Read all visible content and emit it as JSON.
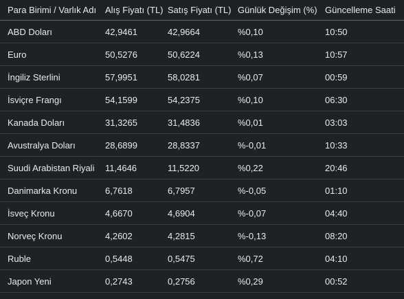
{
  "table": {
    "headers": [
      "Para Birimi / Varlık Adı",
      "Alış Fiyatı (TL)",
      "Satış Fiyatı (TL)",
      "Günlük Değişim (%)",
      "Güncelleme Saati"
    ],
    "rows": [
      [
        "ABD Doları",
        "42,9461",
        "42,9664",
        "%0,10",
        "10:50"
      ],
      [
        "Euro",
        "50,5276",
        "50,6224",
        "%0,13",
        "10:57"
      ],
      [
        "İngiliz Sterlini",
        "57,9951",
        "58,0281",
        "%0,07",
        "00:59"
      ],
      [
        "İsviçre Frangı",
        "54,1599",
        "54,2375",
        "%0,10",
        "06:30"
      ],
      [
        "Kanada Doları",
        "31,3265",
        "31,4836",
        "%0,01",
        "03:03"
      ],
      [
        "Avustralya Doları",
        "28,6899",
        "28,8337",
        "%-0,01",
        "10:33"
      ],
      [
        "Suudi Arabistan Riyali",
        "11,4646",
        "11,5220",
        "%0,22",
        "20:46"
      ],
      [
        "Danimarka Kronu",
        "6,7618",
        "6,7957",
        "%-0,05",
        "01:10"
      ],
      [
        "İsveç Kronu",
        "4,6670",
        "4,6904",
        "%-0,07",
        "04:40"
      ],
      [
        "Norveç Kronu",
        "4,2602",
        "4,2815",
        "%-0,13",
        "08:20"
      ],
      [
        "Ruble",
        "0,5448",
        "0,5475",
        "%0,72",
        "04:10"
      ],
      [
        "Japon Yeni",
        "0,2743",
        "0,2756",
        "%0,29",
        "00:52"
      ]
    ]
  }
}
